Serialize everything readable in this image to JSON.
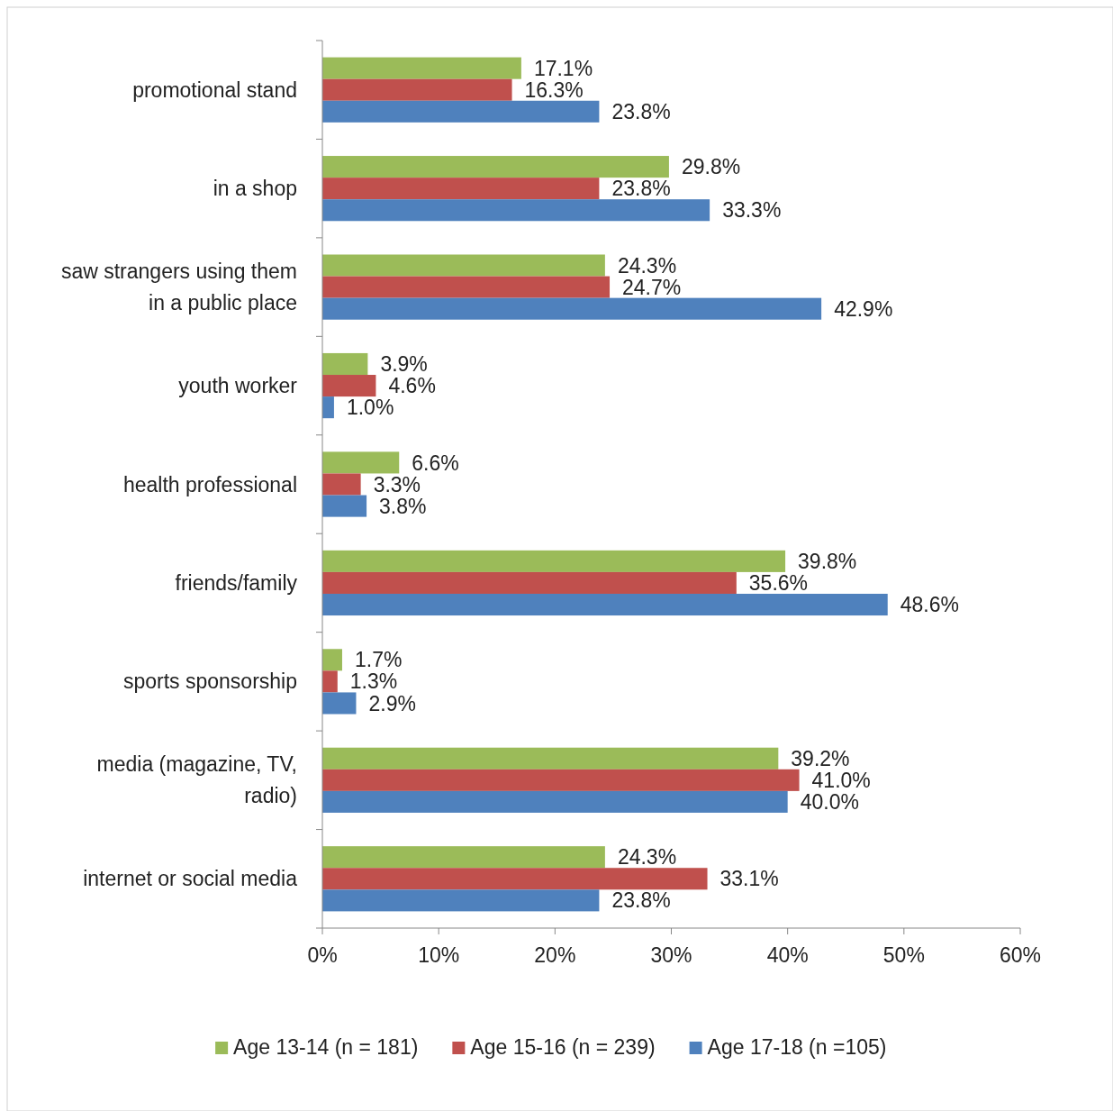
{
  "chart_data": {
    "type": "bar",
    "orientation": "horizontal",
    "legend": "bottom",
    "categories": [
      "promotional stand",
      "in a shop",
      "saw strangers using them in a public place",
      "youth worker",
      "health professional",
      "friends/family",
      "sports sponsorship",
      "media (magazine, TV, radio)",
      "internet or social media"
    ],
    "series": [
      {
        "name": "Age 13-14 (n = 181)",
        "color": "#9bbb59",
        "values": [
          17.1,
          29.8,
          24.3,
          3.9,
          6.6,
          39.8,
          1.7,
          39.2,
          24.3
        ],
        "value_labels": [
          "17.1%",
          "29.8%",
          "24.3%",
          "3.9%",
          "6.6%",
          "39.8%",
          "1.7%",
          "39.2%",
          "24.3%"
        ]
      },
      {
        "name": "Age 15-16 (n = 239)",
        "color": "#c0504d",
        "values": [
          16.3,
          23.8,
          24.7,
          4.6,
          3.3,
          35.6,
          1.3,
          41.0,
          33.1
        ],
        "value_labels": [
          "16.3%",
          "23.8%",
          "24.7%",
          "4.6%",
          "3.3%",
          "35.6%",
          "1.3%",
          "41.0%",
          "33.1%"
        ]
      },
      {
        "name": "Age 17-18 (n =105)",
        "color": "#4f81bd",
        "values": [
          23.8,
          33.3,
          42.9,
          1.0,
          3.8,
          48.6,
          2.9,
          40.0,
          23.8
        ],
        "value_labels": [
          "23.8%",
          "33.3%",
          "42.9%",
          "1.0%",
          "3.8%",
          "48.6%",
          "2.9%",
          "40.0%",
          "23.8%"
        ]
      }
    ],
    "xlim": [
      0,
      60
    ],
    "xticks": [
      {
        "value": 0,
        "label": "0%"
      },
      {
        "value": 10,
        "label": "10%"
      },
      {
        "value": 20,
        "label": "20%"
      },
      {
        "value": 30,
        "label": "30%"
      },
      {
        "value": 40,
        "label": "40%"
      },
      {
        "value": 50,
        "label": "50%"
      },
      {
        "value": 60,
        "label": "60%"
      }
    ]
  }
}
